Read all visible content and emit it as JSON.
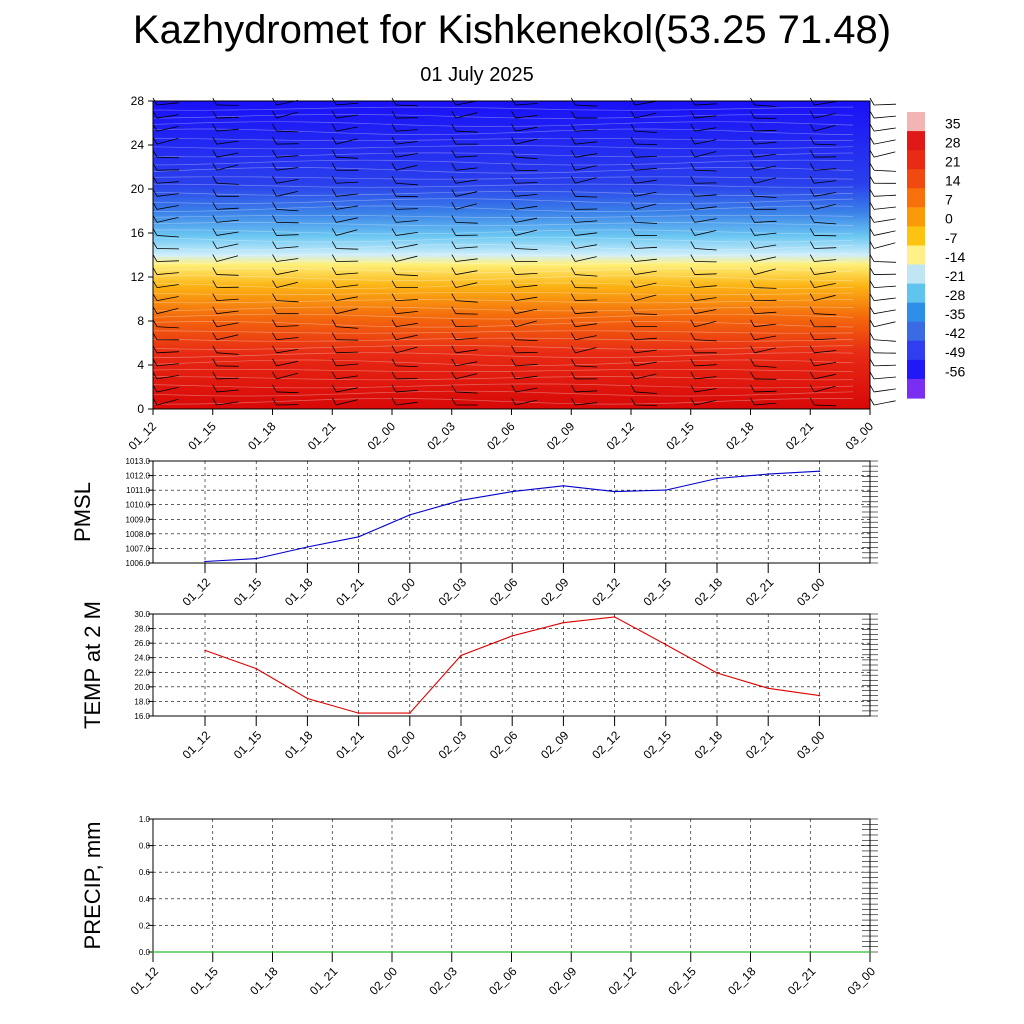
{
  "title": "Kazhydromet for Kishkenekol(53.25 71.48)",
  "subtitle": "01 July 2025",
  "chart_data": [
    {
      "type": "heatmap",
      "name": "cross-section",
      "x_ticks": [
        "01_12",
        "01_15",
        "01_18",
        "01_21",
        "02_00",
        "02_03",
        "02_06",
        "02_09",
        "02_12",
        "02_15",
        "02_18",
        "02_21",
        "03_00"
      ],
      "y_ticks": [
        "0",
        "4",
        "8",
        "12",
        "16",
        "20",
        "24",
        "28"
      ],
      "ylim": [
        0,
        28
      ],
      "colorbar_labels": [
        "35",
        "28",
        "21",
        "14",
        "7",
        "0",
        "-7",
        "-14",
        "-21",
        "-28",
        "-35",
        "-42",
        "-49",
        "-56"
      ],
      "colorbar_colors": [
        "#f3b4b4",
        "#e01818",
        "#e82a14",
        "#f04a10",
        "#f8700c",
        "#fa9a08",
        "#fcc410",
        "#fff08a",
        "#bfe6f2",
        "#5fc4ee",
        "#2e8fe8",
        "#3a6ae4",
        "#2f3ef0",
        "#2018f6",
        "#7a2ef2"
      ]
    },
    {
      "type": "line",
      "name": "PMSL",
      "ylabel": "PMSL",
      "x": [
        "01_12",
        "01_15",
        "01_18",
        "01_21",
        "02_00",
        "02_03",
        "02_06",
        "02_09",
        "02_12",
        "02_15",
        "02_18",
        "02_21",
        "03_00"
      ],
      "values": [
        1006.1,
        1006.3,
        1007.1,
        1007.8,
        1009.3,
        1010.3,
        1010.9,
        1011.3,
        1010.9,
        1011.0,
        1011.8,
        1012.1,
        1012.3
      ],
      "ylim": [
        1006,
        1013
      ],
      "y_ticks": [
        "1006.0",
        "1007.0",
        "1008.0",
        "1009.0",
        "1010.0",
        "1011.0",
        "1012.0",
        "1013.0"
      ],
      "color": "#0000cc"
    },
    {
      "type": "line",
      "name": "TEMP at 2 M",
      "ylabel": "TEMP at 2 M",
      "x": [
        "01_12",
        "01_15",
        "01_18",
        "01_21",
        "02_00",
        "02_03",
        "02_06",
        "02_09",
        "02_12",
        "02_15",
        "02_18",
        "02_21",
        "03_00"
      ],
      "values": [
        25.0,
        22.5,
        18.4,
        16.4,
        16.4,
        24.3,
        27.0,
        28.8,
        29.6,
        25.8,
        21.9,
        19.8,
        18.8
      ],
      "ylim": [
        16,
        30
      ],
      "y_ticks": [
        "16.0",
        "18.0",
        "20.0",
        "22.0",
        "24.0",
        "26.0",
        "28.0",
        "30.0"
      ],
      "color": "#dd0000"
    },
    {
      "type": "line",
      "name": "PRECIP, mm",
      "ylabel": "PRECIP, mm",
      "x": [
        "01_12",
        "01_15",
        "01_18",
        "01_21",
        "02_00",
        "02_03",
        "02_06",
        "02_09",
        "02_12",
        "02_15",
        "02_18",
        "02_21",
        "03_00"
      ],
      "values": [
        0,
        0,
        0,
        0,
        0,
        0,
        0,
        0,
        0,
        0,
        0,
        0,
        0
      ],
      "ylim": [
        0,
        1
      ],
      "y_ticks": [
        "0.0",
        "0.2",
        "0.4",
        "0.6",
        "0.8",
        "1.0"
      ],
      "color": "#00aa00"
    }
  ]
}
